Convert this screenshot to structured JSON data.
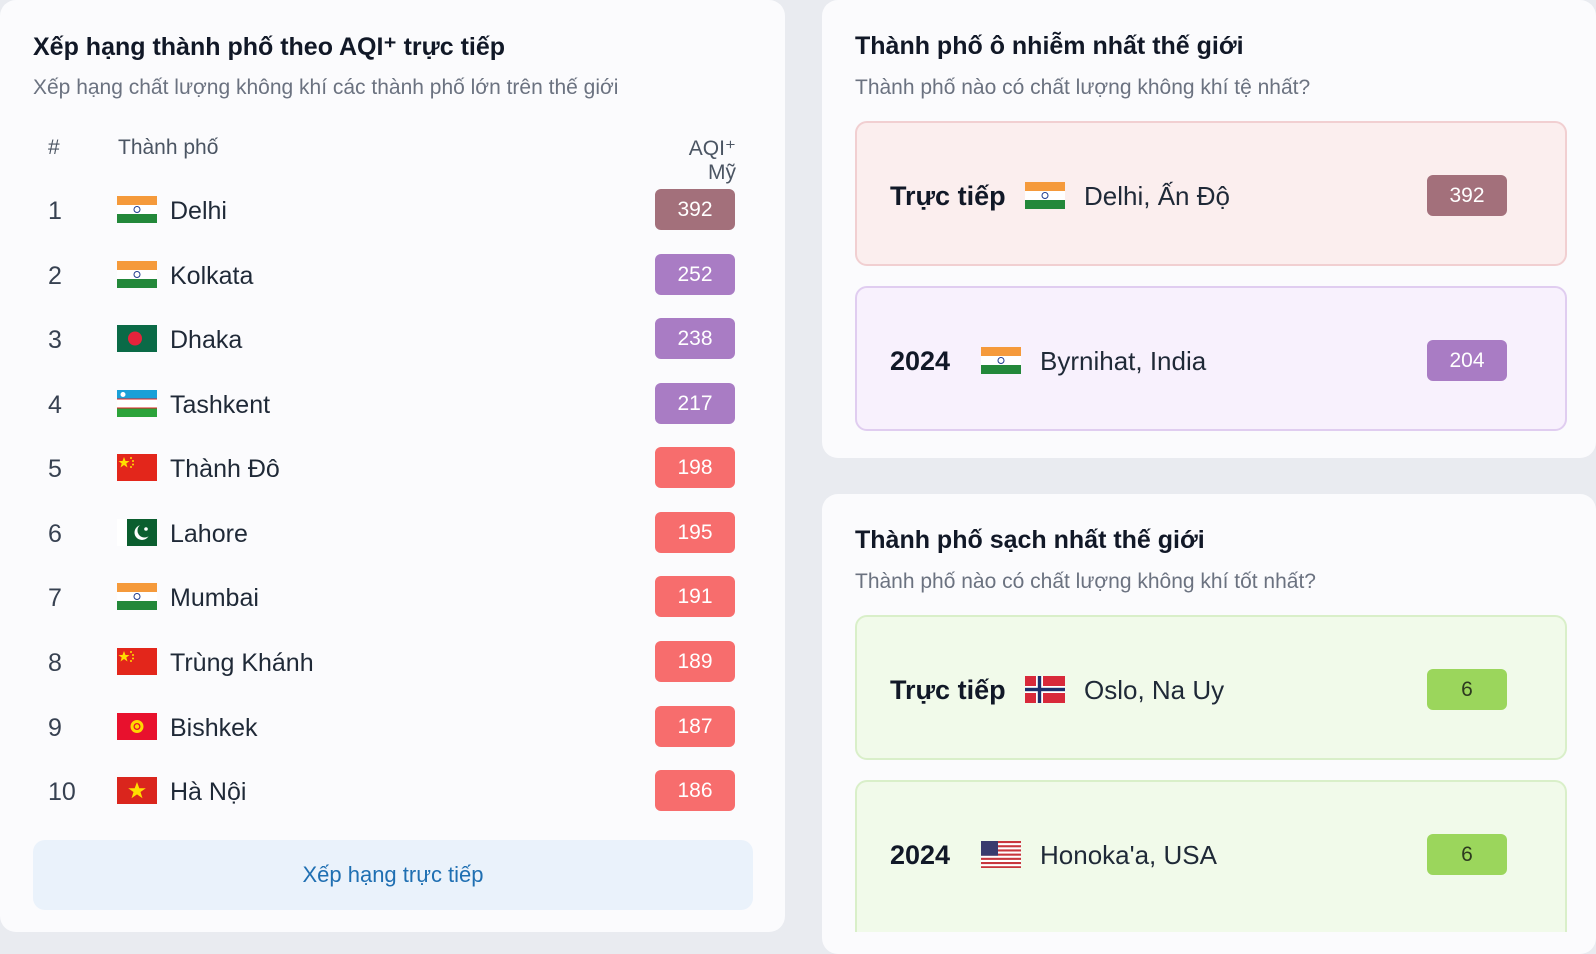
{
  "ranking": {
    "title": "Xếp hạng thành phố theo AQI⁺ trực tiếp",
    "subtitle": "Xếp hạng chất lượng không khí các thành phố lớn trên thế giới",
    "header": [
      "#",
      "Thành phố",
      "AQI⁺ Mỹ"
    ],
    "rows": [
      {
        "rank": 1,
        "city": "Delhi",
        "aqi": 392
      },
      {
        "rank": 2,
        "city": "Kolkata",
        "aqi": 252
      },
      {
        "rank": 3,
        "city": "Dhaka",
        "aqi": 238
      },
      {
        "rank": 4,
        "city": "Tashkent",
        "aqi": 217
      },
      {
        "rank": 5,
        "city": "Thành Đô",
        "aqi": 198
      },
      {
        "rank": 6,
        "city": "Lahore",
        "aqi": 195
      },
      {
        "rank": 7,
        "city": "Mumbai",
        "aqi": 191
      },
      {
        "rank": 8,
        "city": "Trùng Khánh",
        "aqi": 189
      },
      {
        "rank": 9,
        "city": "Bishkek",
        "aqi": 187
      },
      {
        "rank": 10,
        "city": "Hà Nội",
        "aqi": 186
      }
    ],
    "button": "Xếp hạng trực tiếp"
  },
  "polluted": {
    "title": "Thành phố ô nhiễm nhất thế giới",
    "subtitle": "Thành phố nào có chất lượng không khí tệ nhất?",
    "items": [
      {
        "label": "Trực tiếp",
        "city": "Delhi, Ấn Độ",
        "aqi": 392
      },
      {
        "label": "2024",
        "city": "Byrnihat, India",
        "aqi": 204
      }
    ]
  },
  "clean": {
    "title": "Thành phố sạch nhất thế giới",
    "subtitle": "Thành phố nào có chất lượng không khí tốt nhất?",
    "items": [
      {
        "label": "Trực tiếp",
        "city": "Oslo, Na Uy",
        "aqi": 6
      },
      {
        "label": "2024",
        "city": "Honoka'a, USA",
        "aqi": 6
      }
    ]
  }
}
